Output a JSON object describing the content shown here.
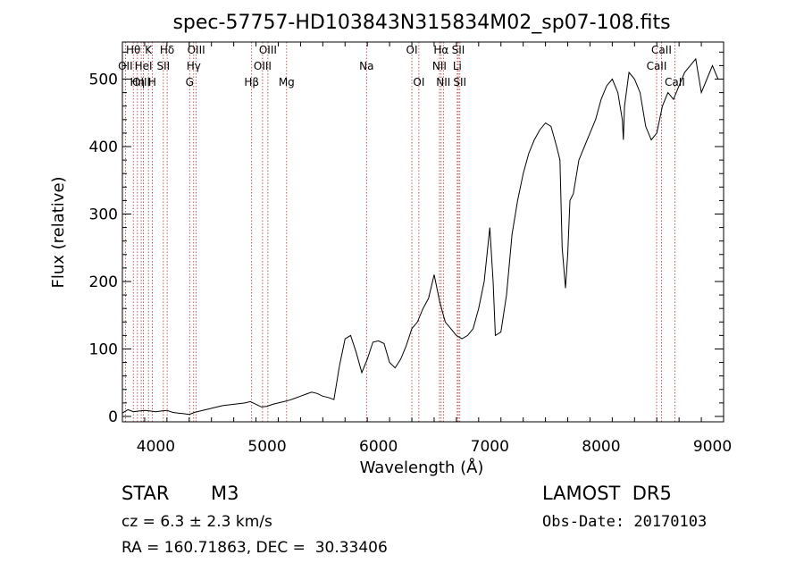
{
  "chart_data": {
    "type": "line",
    "title": "spec-57757-HD103843N315834M02_sp07-108.fits",
    "xlabel": "Wavelength (Å)",
    "ylabel": "Flux (relative)",
    "xlim": [
      3700,
      9100
    ],
    "ylim": [
      -8,
      555
    ],
    "xticks": [
      4000,
      5000,
      6000,
      7000,
      8000,
      9000
    ],
    "yticks": [
      0,
      100,
      200,
      300,
      400,
      500
    ],
    "grid": false,
    "series": [
      {
        "x": [
          3700,
          3750,
          3800,
          3850,
          3900,
          3950,
          4000,
          4050,
          4100,
          4150,
          4200,
          4250,
          4300,
          4350,
          4400,
          4450,
          4500,
          4550,
          4600,
          4650,
          4700,
          4750,
          4800,
          4850,
          4900,
          4950,
          5000,
          5050,
          5100,
          5150,
          5200,
          5250,
          5300,
          5350,
          5400,
          5450,
          5500,
          5550,
          5600,
          5650,
          5700,
          5750,
          5800,
          5850,
          5900,
          5950,
          6000,
          6050,
          6100,
          6150,
          6200,
          6250,
          6300,
          6350,
          6400,
          6450,
          6500,
          6550,
          6600,
          6650,
          6700,
          6750,
          6800,
          6850,
          6900,
          6950,
          7000,
          7030,
          7050,
          7100,
          7150,
          7200,
          7250,
          7300,
          7350,
          7400,
          7450,
          7500,
          7550,
          7600,
          7630,
          7650,
          7680,
          7700,
          7720,
          7750,
          7800,
          7850,
          7900,
          7950,
          8000,
          8050,
          8100,
          8150,
          8190,
          8200,
          8210,
          8250,
          8300,
          8350,
          8400,
          8450,
          8500,
          8550,
          8600,
          8650,
          8700,
          8750,
          8800,
          8850,
          8900,
          8950,
          9000,
          9050
        ],
        "y": [
          5,
          10,
          7,
          8,
          9,
          8,
          7,
          8,
          9,
          6,
          5,
          4,
          3,
          6,
          8,
          10,
          12,
          14,
          16,
          17,
          18,
          19,
          20,
          22,
          18,
          14,
          15,
          18,
          20,
          22,
          24,
          27,
          30,
          33,
          36,
          34,
          30,
          28,
          25,
          75,
          115,
          120,
          95,
          65,
          85,
          110,
          112,
          108,
          80,
          72,
          85,
          105,
          130,
          140,
          160,
          175,
          210,
          170,
          140,
          130,
          120,
          115,
          120,
          130,
          160,
          200,
          280,
          200,
          120,
          125,
          180,
          270,
          320,
          360,
          390,
          410,
          425,
          435,
          430,
          400,
          380,
          250,
          190,
          240,
          320,
          330,
          380,
          400,
          420,
          440,
          470,
          490,
          500,
          480,
          440,
          410,
          460,
          510,
          500,
          480,
          430,
          410,
          420,
          460,
          480,
          470,
          490,
          510,
          520,
          530,
          480,
          500,
          520,
          500
        ]
      }
    ],
    "lines": [
      {
        "label": "Hθ",
        "x": 3798,
        "row": 0
      },
      {
        "label": "K",
        "x": 3934,
        "row": 0
      },
      {
        "label": "Hδ",
        "x": 4102,
        "row": 0
      },
      {
        "label": "OIII",
        "x": 4363,
        "row": 0
      },
      {
        "label": "OIII",
        "x": 5007,
        "row": 0
      },
      {
        "label": "OI",
        "x": 6300,
        "row": 0
      },
      {
        "label": "Hα",
        "x": 6563,
        "row": 0
      },
      {
        "label": "SII",
        "x": 6717,
        "row": 0
      },
      {
        "label": "CaII",
        "x": 8542,
        "row": 0
      },
      {
        "label": "OII",
        "x": 3727,
        "row": 1
      },
      {
        "label": "HeI",
        "x": 3889,
        "row": 1
      },
      {
        "label": "SII",
        "x": 4068,
        "row": 1
      },
      {
        "label": "Hγ",
        "x": 4340,
        "row": 1
      },
      {
        "label": "OIII",
        "x": 4959,
        "row": 1
      },
      {
        "label": "Na",
        "x": 5893,
        "row": 1
      },
      {
        "label": "NII",
        "x": 6548,
        "row": 1
      },
      {
        "label": "Li",
        "x": 6708,
        "row": 1
      },
      {
        "label": "CaII",
        "x": 8498,
        "row": 1
      },
      {
        "label": "OIII",
        "x": 3869,
        "row": 2
      },
      {
        "label": "Hη",
        "x": 3835,
        "row": 2
      },
      {
        "label": "H",
        "x": 3968,
        "row": 2
      },
      {
        "label": "G",
        "x": 4304,
        "row": 2
      },
      {
        "label": "Hβ",
        "x": 4861,
        "row": 2
      },
      {
        "label": "Mg",
        "x": 5175,
        "row": 2
      },
      {
        "label": "OI",
        "x": 6363,
        "row": 2
      },
      {
        "label": "NII",
        "x": 6583,
        "row": 2
      },
      {
        "label": "SII",
        "x": 6731,
        "row": 2
      },
      {
        "label": "CaII",
        "x": 8662,
        "row": 2
      }
    ]
  },
  "footer": {
    "object": "STAR",
    "subclass": "M3",
    "cz": "cz = 6.3 ± 2.3 km/s",
    "coords": "RA = 160.71863, DEC =  30.33406",
    "survey": "LAMOST  DR5",
    "obs_date": "Obs-Date: 20170103"
  }
}
